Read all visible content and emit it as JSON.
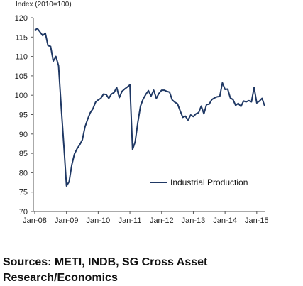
{
  "chart_data": {
    "type": "line",
    "ylabel": "Index (2010=100)",
    "ylim": [
      70,
      120
    ],
    "yticks": [
      70,
      75,
      80,
      85,
      90,
      95,
      100,
      105,
      110,
      115,
      120
    ],
    "x_tick_labels": [
      "Jan-08",
      "Jan-09",
      "Jan-10",
      "Jan-11",
      "Jan-12",
      "Jan-13",
      "Jan-14",
      "Jan-15"
    ],
    "x_tick_indices": [
      0,
      12,
      24,
      36,
      48,
      60,
      72,
      84
    ],
    "grid": false,
    "legend_position": "lower-right",
    "series": [
      {
        "name": "Industrial Production",
        "color": "#1f3864",
        "start": "Jan-08",
        "values": [
          116.8,
          117.2,
          116.3,
          115.4,
          116.0,
          112.8,
          112.6,
          108.8,
          110.0,
          107.6,
          97.0,
          87.0,
          76.6,
          77.7,
          82.0,
          84.8,
          86.2,
          87.2,
          88.5,
          91.8,
          93.8,
          95.5,
          96.5,
          98.2,
          98.8,
          99.2,
          100.3,
          100.2,
          99.2,
          100.3,
          100.7,
          102.0,
          99.4,
          101.0,
          101.6,
          102.1,
          102.7,
          86.0,
          88.0,
          93.0,
          97.2,
          99.0,
          100.2,
          101.2,
          99.8,
          101.3,
          99.2,
          100.5,
          101.3,
          101.3,
          101.0,
          100.8,
          98.8,
          98.2,
          97.8,
          96.0,
          94.3,
          94.6,
          93.6,
          94.9,
          94.5,
          95.2,
          95.5,
          97.2,
          95.2,
          97.6,
          97.7,
          98.9,
          99.3,
          99.6,
          99.7,
          103.2,
          101.5,
          101.6,
          99.3,
          98.9,
          97.4,
          97.9,
          97.1,
          98.5,
          98.3,
          98.6,
          98.3,
          102.0,
          98.0,
          98.5,
          99.2,
          97.2
        ]
      }
    ]
  },
  "sources_text": "Sources: METI, INDB, SG Cross Asset Research/Economics"
}
